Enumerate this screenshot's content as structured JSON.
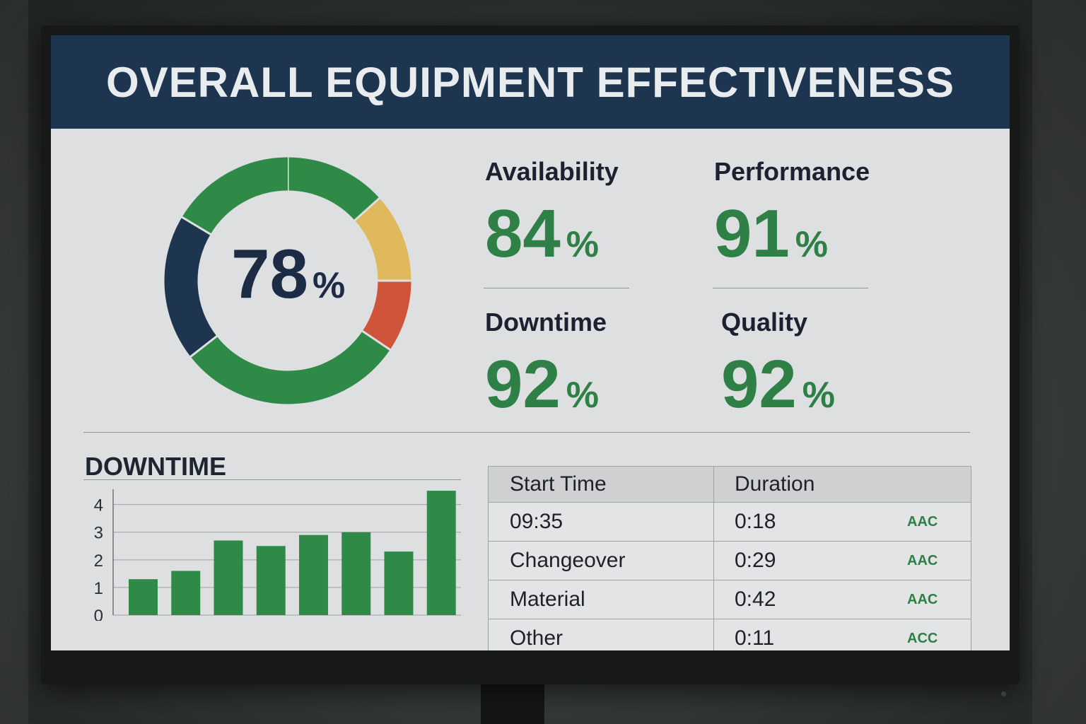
{
  "header": {
    "title": "OVERALL EQUIPMENT EFFECTIVENESS"
  },
  "oee": {
    "value": "78",
    "unit": "%",
    "segment_colors": {
      "green": "#2f8a48",
      "yellow": "#e0b95c",
      "red": "#d0543a",
      "navy": "#1e3550"
    }
  },
  "metrics": [
    {
      "label": "Availability",
      "value": "84",
      "unit": "%"
    },
    {
      "label": "Performance",
      "value": "91",
      "unit": "%"
    },
    {
      "label": "Downtime",
      "value": "92",
      "unit": "%"
    },
    {
      "label": "Quality",
      "value": "92",
      "unit": "%"
    }
  ],
  "downtime": {
    "title": "DOWNTIME"
  },
  "chart_data": {
    "type": "bar",
    "categories": [
      "",
      "",
      "",
      "",
      "",
      "",
      "",
      ""
    ],
    "values": [
      1.3,
      1.6,
      2.7,
      2.5,
      2.9,
      3.0,
      2.3,
      4.5
    ],
    "yticks": [
      "0",
      "1",
      "2",
      "3",
      "4"
    ],
    "ylim": [
      0,
      4.4
    ],
    "grid": true,
    "bar_color": "#2f8a48"
  },
  "table": {
    "headers": [
      "Start Time",
      "Duration",
      ""
    ],
    "rows": [
      [
        "09:35",
        "0:18",
        "AAC"
      ],
      [
        "Changeover",
        "0:29",
        "AAC"
      ],
      [
        "Material",
        "0:42",
        "AAC"
      ],
      [
        "Other",
        "0:11",
        "ACC"
      ]
    ]
  }
}
